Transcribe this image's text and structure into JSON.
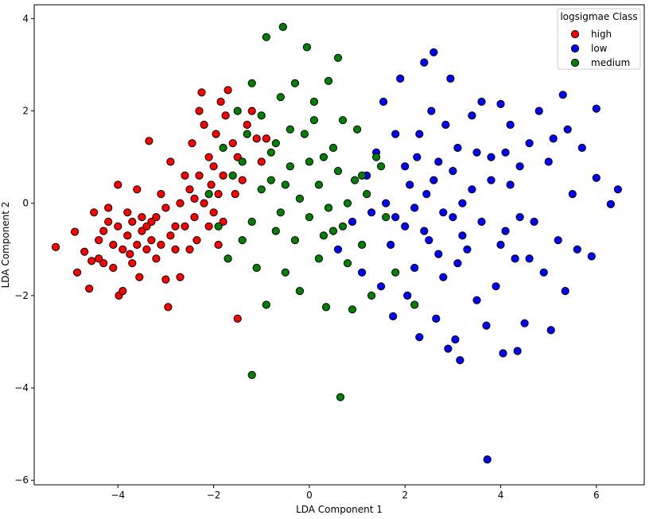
{
  "chart_data": {
    "type": "scatter",
    "title": "",
    "xlabel": "LDA Component 1",
    "ylabel": "LDA Component 2",
    "xlim": [
      -5.75,
      7.0
    ],
    "ylim": [
      -6.1,
      4.3
    ],
    "xticks": [
      -4,
      -2,
      0,
      2,
      4,
      6
    ],
    "yticks": [
      -6,
      -4,
      -2,
      0,
      2,
      4
    ],
    "xtick_labels": [
      "−4",
      "−2",
      "0",
      "2",
      "4",
      "6"
    ],
    "ytick_labels": [
      "−6",
      "−4",
      "−2",
      "0",
      "2",
      "4"
    ],
    "grid": false,
    "legend": {
      "title": "logsigmae Class",
      "position": "top-right"
    },
    "series": [
      {
        "name": "high",
        "color": "#ff0000",
        "points": [
          [
            -5.3,
            -0.95
          ],
          [
            -4.9,
            -0.62
          ],
          [
            -4.85,
            -1.5
          ],
          [
            -4.7,
            -1.05
          ],
          [
            -4.6,
            -1.85
          ],
          [
            -4.5,
            -0.2
          ],
          [
            -4.4,
            -1.2
          ],
          [
            -4.3,
            -0.6
          ],
          [
            -4.2,
            -0.1
          ],
          [
            -4.1,
            -1.4
          ],
          [
            -4.0,
            0.4
          ],
          [
            -3.98,
            -2.0
          ],
          [
            -3.9,
            -1.9
          ],
          [
            -3.8,
            -0.7
          ],
          [
            -3.7,
            -1.3
          ],
          [
            -3.6,
            0.3
          ],
          [
            -3.55,
            -1.6
          ],
          [
            -3.5,
            -0.3
          ],
          [
            -3.4,
            -1.0
          ],
          [
            -3.35,
            1.35
          ],
          [
            -3.3,
            -0.4
          ],
          [
            -3.2,
            -1.2
          ],
          [
            -3.1,
            0.2
          ],
          [
            -3.0,
            -1.65
          ],
          [
            -2.95,
            -2.25
          ],
          [
            -2.9,
            0.9
          ],
          [
            -2.8,
            -0.5
          ],
          [
            -2.7,
            -1.6
          ],
          [
            -2.6,
            0.6
          ],
          [
            -2.5,
            -1.0
          ],
          [
            -2.45,
            1.3
          ],
          [
            -2.4,
            0.1
          ],
          [
            -2.35,
            -0.8
          ],
          [
            -2.3,
            2.0
          ],
          [
            -2.25,
            2.4
          ],
          [
            -2.2,
            1.7
          ],
          [
            -2.1,
            1.0
          ],
          [
            -2.05,
            0.4
          ],
          [
            -2.0,
            -0.2
          ],
          [
            -1.95,
            1.5
          ],
          [
            -1.9,
            -0.9
          ],
          [
            -1.85,
            2.2
          ],
          [
            -1.8,
            0.6
          ],
          [
            -1.75,
            1.9
          ],
          [
            -1.7,
            2.45
          ],
          [
            -1.6,
            1.3
          ],
          [
            -1.55,
            0.2
          ],
          [
            -1.5,
            -2.5
          ],
          [
            -1.5,
            1.0
          ],
          [
            -1.4,
            0.5
          ],
          [
            -1.3,
            1.7
          ],
          [
            -1.2,
            2.0
          ],
          [
            -1.1,
            1.4
          ],
          [
            -1.0,
            0.9
          ],
          [
            -0.9,
            1.4
          ],
          [
            -3.7,
            -0.4
          ],
          [
            -3.8,
            -0.2
          ],
          [
            -3.6,
            -0.9
          ],
          [
            -3.5,
            -0.6
          ],
          [
            -3.4,
            -0.5
          ],
          [
            -3.3,
            -0.8
          ],
          [
            -3.2,
            -0.3
          ],
          [
            -3.1,
            -0.9
          ],
          [
            -3.0,
            -0.1
          ],
          [
            -2.9,
            -0.7
          ],
          [
            -2.8,
            -1.0
          ],
          [
            -2.7,
            0.0
          ],
          [
            -2.6,
            -0.5
          ],
          [
            -2.5,
            0.3
          ],
          [
            -2.4,
            -0.3
          ],
          [
            -2.3,
            0.6
          ],
          [
            -2.2,
            0.0
          ],
          [
            -2.1,
            -0.5
          ],
          [
            -2.0,
            0.8
          ],
          [
            -1.9,
            0.2
          ],
          [
            -1.8,
            -0.4
          ],
          [
            -4.0,
            -0.5
          ],
          [
            -4.1,
            -0.9
          ],
          [
            -4.2,
            -0.4
          ],
          [
            -3.9,
            -1.0
          ],
          [
            -3.75,
            -1.1
          ],
          [
            -4.4,
            -0.8
          ],
          [
            -4.55,
            -1.25
          ],
          [
            -4.3,
            -1.3
          ]
        ]
      },
      {
        "name": "low",
        "color": "#0000ff",
        "points": [
          [
            0.6,
            -1.0
          ],
          [
            0.9,
            -0.4
          ],
          [
            1.1,
            -1.5
          ],
          [
            1.2,
            0.6
          ],
          [
            1.3,
            -0.2
          ],
          [
            1.4,
            1.1
          ],
          [
            1.5,
            -1.8
          ],
          [
            1.55,
            2.2
          ],
          [
            1.6,
            0.0
          ],
          [
            1.7,
            -0.9
          ],
          [
            1.75,
            -2.45
          ],
          [
            1.8,
            1.5
          ],
          [
            1.9,
            2.7
          ],
          [
            2.0,
            -0.5
          ],
          [
            2.05,
            -2.0
          ],
          [
            2.1,
            0.4
          ],
          [
            2.2,
            -1.4
          ],
          [
            2.25,
            1.0
          ],
          [
            2.3,
            -2.9
          ],
          [
            2.4,
            3.05
          ],
          [
            2.45,
            0.2
          ],
          [
            2.5,
            -0.8
          ],
          [
            2.55,
            2.0
          ],
          [
            2.6,
            3.27
          ],
          [
            2.65,
            -2.5
          ],
          [
            2.7,
            0.9
          ],
          [
            2.8,
            -1.6
          ],
          [
            2.85,
            1.7
          ],
          [
            2.9,
            -3.15
          ],
          [
            2.95,
            2.7
          ],
          [
            3.0,
            -0.3
          ],
          [
            3.05,
            -2.95
          ],
          [
            3.1,
            1.2
          ],
          [
            3.15,
            -3.4
          ],
          [
            3.2,
            0.0
          ],
          [
            3.3,
            -1.0
          ],
          [
            3.4,
            1.9
          ],
          [
            3.5,
            -2.1
          ],
          [
            3.6,
            2.2
          ],
          [
            3.7,
            -2.65
          ],
          [
            3.72,
            -5.55
          ],
          [
            3.8,
            0.5
          ],
          [
            3.9,
            -1.8
          ],
          [
            4.0,
            2.15
          ],
          [
            4.05,
            -3.25
          ],
          [
            4.1,
            -0.6
          ],
          [
            4.2,
            1.7
          ],
          [
            4.3,
            -1.2
          ],
          [
            4.35,
            -3.2
          ],
          [
            4.4,
            0.8
          ],
          [
            4.5,
            -2.6
          ],
          [
            4.6,
            1.3
          ],
          [
            4.7,
            -0.4
          ],
          [
            4.8,
            2.0
          ],
          [
            4.9,
            -1.5
          ],
          [
            5.0,
            0.9
          ],
          [
            5.05,
            -2.75
          ],
          [
            5.1,
            1.4
          ],
          [
            5.2,
            -0.8
          ],
          [
            5.3,
            2.35
          ],
          [
            5.35,
            -1.9
          ],
          [
            5.4,
            1.6
          ],
          [
            5.5,
            0.2
          ],
          [
            5.6,
            -1.0
          ],
          [
            5.7,
            1.2
          ],
          [
            5.9,
            -1.15
          ],
          [
            6.0,
            2.05
          ],
          [
            6.0,
            0.55
          ],
          [
            6.3,
            -0.02
          ],
          [
            6.45,
            0.3
          ],
          [
            2.0,
            0.8
          ],
          [
            2.2,
            -0.1
          ],
          [
            2.4,
            -0.6
          ],
          [
            2.6,
            0.5
          ],
          [
            2.8,
            -0.2
          ],
          [
            3.0,
            0.7
          ],
          [
            3.2,
            -0.7
          ],
          [
            3.4,
            0.3
          ],
          [
            3.6,
            -0.4
          ],
          [
            3.8,
            1.0
          ],
          [
            4.0,
            -0.9
          ],
          [
            4.2,
            0.4
          ],
          [
            4.4,
            -0.3
          ],
          [
            4.6,
            -1.2
          ],
          [
            3.1,
            -1.3
          ],
          [
            2.7,
            -1.1
          ],
          [
            2.3,
            1.5
          ],
          [
            3.5,
            1.1
          ],
          [
            4.1,
            1.1
          ],
          [
            1.8,
            -0.3
          ]
        ]
      },
      {
        "name": "medium",
        "color": "#008000",
        "points": [
          [
            -2.1,
            0.2
          ],
          [
            -1.9,
            -0.5
          ],
          [
            -1.8,
            1.2
          ],
          [
            -1.7,
            -1.2
          ],
          [
            -1.6,
            0.6
          ],
          [
            -1.5,
            2.0
          ],
          [
            -1.4,
            -0.8
          ],
          [
            -1.3,
            1.5
          ],
          [
            -1.2,
            -3.72
          ],
          [
            -1.2,
            2.6
          ],
          [
            -1.1,
            -1.4
          ],
          [
            -1.0,
            0.3
          ],
          [
            -0.9,
            3.6
          ],
          [
            -0.9,
            -2.2
          ],
          [
            -0.8,
            1.1
          ],
          [
            -0.7,
            -0.6
          ],
          [
            -0.6,
            2.3
          ],
          [
            -0.55,
            3.82
          ],
          [
            -0.5,
            -1.5
          ],
          [
            -0.4,
            0.8
          ],
          [
            -0.3,
            2.6
          ],
          [
            -0.2,
            -1.9
          ],
          [
            -0.1,
            1.5
          ],
          [
            -0.05,
            3.38
          ],
          [
            0.0,
            -0.3
          ],
          [
            0.1,
            2.2
          ],
          [
            0.2,
            -1.2
          ],
          [
            0.3,
            1.0
          ],
          [
            0.35,
            -2.25
          ],
          [
            0.4,
            2.65
          ],
          [
            0.5,
            -0.6
          ],
          [
            0.6,
            3.15
          ],
          [
            0.65,
            -4.2
          ],
          [
            0.7,
            1.8
          ],
          [
            0.8,
            -1.3
          ],
          [
            0.9,
            -2.3
          ],
          [
            0.95,
            0.5
          ],
          [
            1.0,
            1.6
          ],
          [
            1.1,
            -0.9
          ],
          [
            1.2,
            0.2
          ],
          [
            1.3,
            -2.0
          ],
          [
            1.4,
            1.0
          ],
          [
            1.5,
            0.8
          ],
          [
            1.6,
            -0.3
          ],
          [
            1.8,
            -1.5
          ],
          [
            2.2,
            -2.2
          ],
          [
            -0.8,
            0.5
          ],
          [
            -0.6,
            -0.2
          ],
          [
            -0.4,
            1.6
          ],
          [
            -0.2,
            0.1
          ],
          [
            0.0,
            0.9
          ],
          [
            0.2,
            0.4
          ],
          [
            0.4,
            -0.1
          ],
          [
            0.6,
            0.7
          ],
          [
            -1.0,
            1.9
          ],
          [
            -0.7,
            1.3
          ],
          [
            -0.3,
            -0.8
          ],
          [
            0.1,
            1.8
          ],
          [
            0.5,
            1.2
          ],
          [
            0.8,
            0.0
          ],
          [
            -1.4,
            0.9
          ],
          [
            -1.2,
            -0.4
          ],
          [
            0.3,
            -0.7
          ],
          [
            -0.5,
            0.4
          ],
          [
            0.7,
            -0.5
          ],
          [
            1.1,
            0.6
          ]
        ]
      }
    ]
  }
}
